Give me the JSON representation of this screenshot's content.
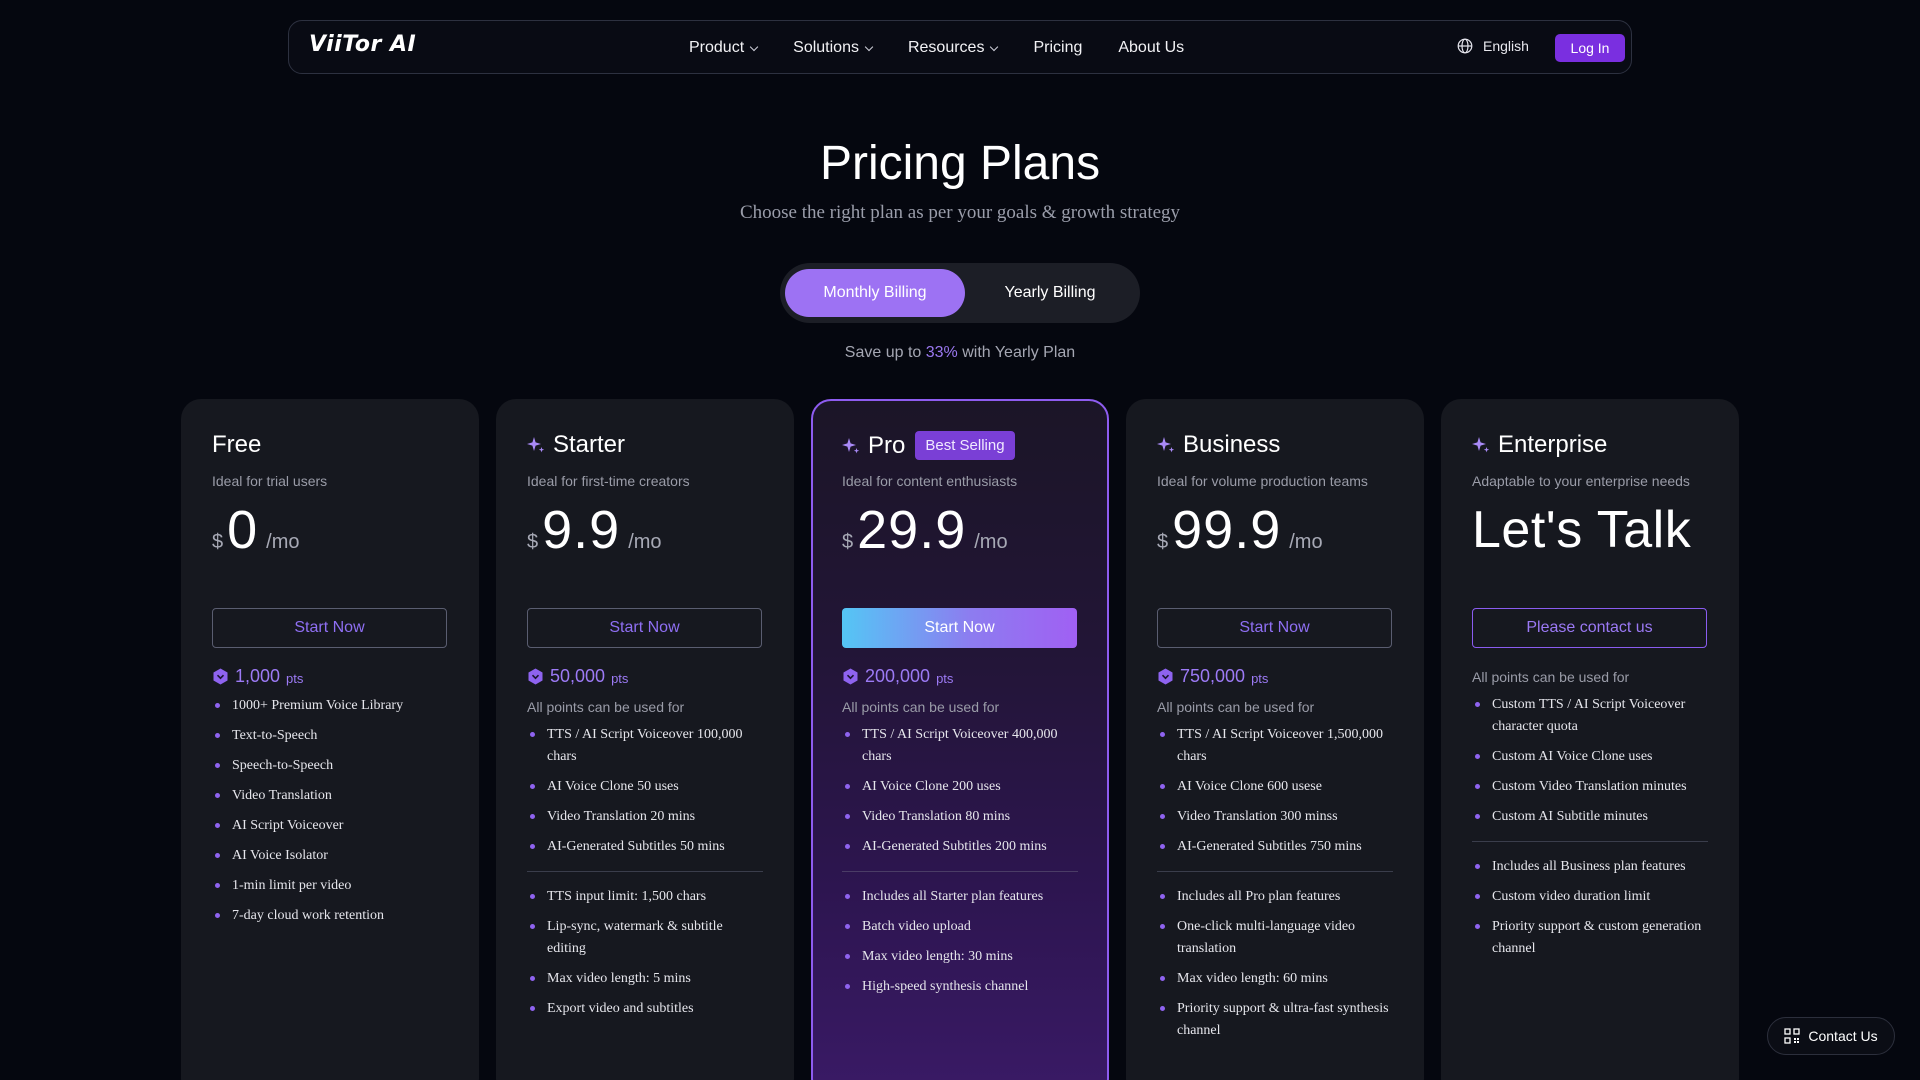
{
  "nav": {
    "logo": "ViiTor AI",
    "links": [
      "Product",
      "Solutions",
      "Resources",
      "Pricing",
      "About Us"
    ],
    "language": "English",
    "login": "Log In",
    "language_icon": "globe-icon"
  },
  "header": {
    "title": "Pricing Plans",
    "subtitle": "Choose the right plan as per your goals & growth strategy"
  },
  "billing": {
    "monthly": "Monthly Billing",
    "yearly": "Yearly Billing",
    "selected": "Monthly Billing",
    "save_prefix": "Save up to",
    "save_pct": "33%",
    "save_suffix": "with Yearly Plan"
  },
  "colors": {
    "accent": "#7a2fe0",
    "toggle_active": "#9d72f3",
    "points": "#9c7af5",
    "background": "#05070f"
  },
  "plans": [
    {
      "name": "Free",
      "ideal": "Ideal for trial users",
      "currency": "$",
      "amount": "0",
      "per": "/mo",
      "cta": "Start Now",
      "points": "1,000",
      "pts_unit": "pts",
      "usable": "",
      "features_a": [
        "1000+ Premium Voice Library",
        "Text-to-Speech",
        "Speech-to-Speech",
        "Video Translation",
        "AI Script Voiceover",
        "AI Voice Isolator",
        "1-min limit per video",
        "7-day cloud work retention"
      ],
      "features_b": []
    },
    {
      "name": "Starter",
      "ideal": "Ideal for first-time creators",
      "currency": "$",
      "amount": "9.9",
      "per": "/mo",
      "cta": "Start Now",
      "points": "50,000",
      "pts_unit": "pts",
      "usable": "All points can be used for",
      "features_a": [
        "TTS / AI Script Voiceover 100,000 chars",
        "AI Voice Clone 50 uses",
        "Video Translation 20 mins",
        "AI-Generated Subtitles 50 mins"
      ],
      "features_b": [
        "TTS input limit: 1,500 chars",
        "Lip-sync, watermark & subtitle editing",
        "Max video length: 5 mins",
        "Export video and subtitles"
      ]
    },
    {
      "name": "Pro",
      "badge": "Best Selling",
      "ideal": "Ideal for content enthusiasts",
      "currency": "$",
      "amount": "29.9",
      "per": "/mo",
      "cta": "Start Now",
      "points": "200,000",
      "pts_unit": "pts",
      "usable": "All points can be used for",
      "features_a": [
        "TTS / AI Script Voiceover 400,000 chars",
        "AI Voice Clone 200 uses",
        "Video Translation 80 mins",
        "AI-Generated Subtitles 200 mins"
      ],
      "features_b": [
        "Includes all Starter plan features",
        "Batch video upload",
        "Max video length: 30 mins",
        "High-speed synthesis channel"
      ]
    },
    {
      "name": "Business",
      "ideal": "Ideal for volume production teams",
      "currency": "$",
      "amount": "99.9",
      "per": "/mo",
      "cta": "Start Now",
      "points": "750,000",
      "pts_unit": "pts",
      "usable": "All points can be used for",
      "features_a": [
        "TTS / AI Script Voiceover 1,500,000 chars",
        "AI Voice Clone 600 usese",
        "Video Translation 300 minss",
        "AI-Generated Subtitles 750 mins"
      ],
      "features_b": [
        "Includes all Pro plan features",
        "One-click multi-language video translation",
        "Max video length: 60 mins",
        "Priority support & ultra-fast synthesis channel"
      ]
    },
    {
      "name": "Enterprise",
      "ideal": "Adaptable to your enterprise needs",
      "price_text": "Let's Talk",
      "cta": "Please contact us",
      "usable": "All points can be used for",
      "features_a": [
        "Custom TTS / AI Script Voiceover character quota",
        "Custom AI Voice Clone uses",
        "Custom Video Translation minutes",
        "Custom AI Subtitle minutes"
      ],
      "features_b": [
        "Includes all Business plan features",
        "Custom video duration limit",
        "Priority support & custom generation channel"
      ]
    }
  ],
  "contact_float": {
    "label": "Contact Us",
    "icon": "qr-code-icon"
  }
}
